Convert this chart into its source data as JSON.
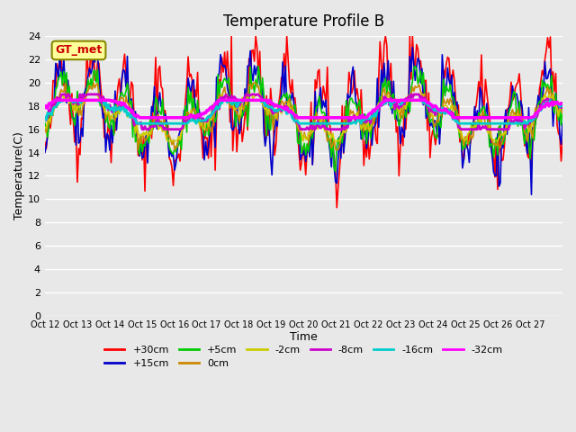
{
  "title": "Temperature Profile B",
  "xlabel": "Time",
  "ylabel": "Temperature(C)",
  "ylim": [
    0,
    24
  ],
  "yticks": [
    0,
    2,
    4,
    6,
    8,
    10,
    12,
    14,
    16,
    18,
    20,
    22,
    24
  ],
  "x_labels": [
    "Oct 12",
    "Oct 13",
    "Oct 14",
    "Oct 15",
    "Oct 16",
    "Oct 17",
    "Oct 18",
    "Oct 19",
    "Oct 20",
    "Oct 21",
    "Oct 22",
    "Oct 23",
    "Oct 24",
    "Oct 25",
    "Oct 26",
    "Oct 27"
  ],
  "legend_label_box": "GT_met",
  "series_colors": {
    "+30cm": "#ff0000",
    "+15cm": "#0000cc",
    "+5cm": "#00cc00",
    "0cm": "#cc8800",
    "-2cm": "#cccc00",
    "-8cm": "#cc00cc",
    "-16cm": "#00cccc",
    "-32cm": "#ff00ff"
  },
  "series_lw": {
    "+30cm": 1.2,
    "+15cm": 1.2,
    "+5cm": 1.2,
    "0cm": 1.2,
    "-2cm": 1.2,
    "-8cm": 2.0,
    "-16cm": 2.0,
    "-32cm": 2.5
  },
  "series_order": [
    "+30cm",
    "+15cm",
    "+5cm",
    "0cm",
    "-2cm",
    "-8cm",
    "-16cm",
    "-32cm"
  ],
  "background_color": "#e8e8e8",
  "grid_color": "#ffffff",
  "title_fontsize": 12,
  "legend_box_color": "#ffff99",
  "legend_box_edge": "#888800",
  "n_days": 16,
  "n_per_day": 24
}
